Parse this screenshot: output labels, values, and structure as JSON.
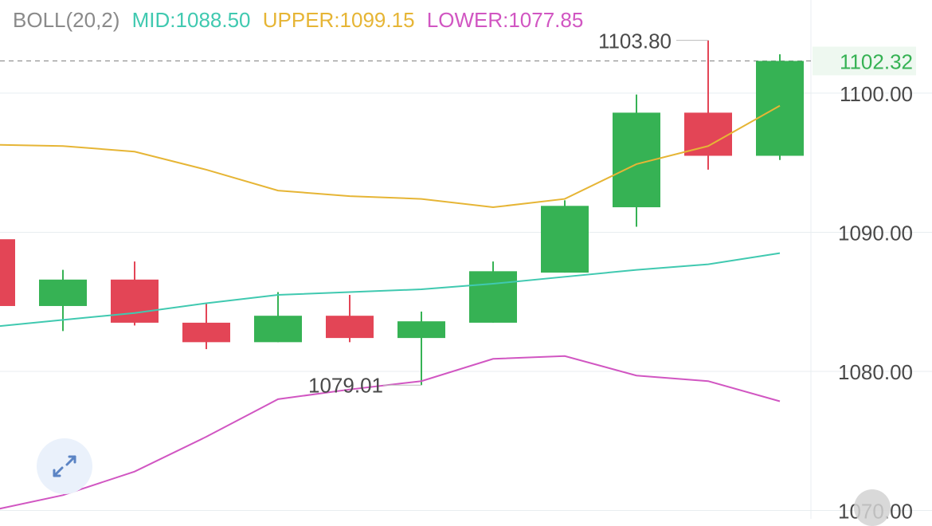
{
  "legend": {
    "name": "BOLL(20,2)",
    "mid": "MID:1088.50",
    "upper": "UPPER:1099.15",
    "lower": "LOWER:1077.85"
  },
  "colors": {
    "up": "#36b254",
    "down": "#e34556",
    "mid": "#40c9b0",
    "upper": "#e6b535",
    "lower": "#d156c2",
    "grid": "#e8eef0",
    "axis_text": "#4a4a4a",
    "legend_name": "#8a8a8a",
    "price_line": "#8a8a8a"
  },
  "chart_data": {
    "type": "candlestick",
    "title": "",
    "ylim": [
      1069.4,
      1106.7
    ],
    "y_ticks": [
      "1100.00",
      "1090.00",
      "1080.00",
      "1070.00"
    ],
    "y_tick_values": [
      1100,
      1090,
      1080,
      1070
    ],
    "current_price": "1102.32",
    "current_price_value": 1102.32,
    "max_label": "1103.80",
    "min_label": "1079.01",
    "candles": [
      {
        "o": 1089.5,
        "c": 1084.7,
        "h": 1089.5,
        "l": 1084.7
      },
      {
        "o": 1084.7,
        "c": 1086.6,
        "h": 1087.3,
        "l": 1082.9
      },
      {
        "o": 1086.6,
        "c": 1083.5,
        "h": 1087.9,
        "l": 1083.3
      },
      {
        "o": 1083.5,
        "c": 1082.1,
        "h": 1084.9,
        "l": 1081.6
      },
      {
        "o": 1082.1,
        "c": 1084.0,
        "h": 1085.7,
        "l": 1082.1
      },
      {
        "o": 1084.0,
        "c": 1082.4,
        "h": 1085.5,
        "l": 1082.1
      },
      {
        "o": 1082.4,
        "c": 1083.6,
        "h": 1084.3,
        "l": 1079.01
      },
      {
        "o": 1083.5,
        "c": 1087.2,
        "h": 1087.9,
        "l": 1083.5
      },
      {
        "o": 1087.1,
        "c": 1091.9,
        "h": 1092.3,
        "l": 1087.1
      },
      {
        "o": 1091.8,
        "c": 1098.6,
        "h": 1099.9,
        "l": 1090.4
      },
      {
        "o": 1098.6,
        "c": 1095.5,
        "h": 1103.8,
        "l": 1094.5
      },
      {
        "o": 1095.5,
        "c": 1102.32,
        "h": 1102.8,
        "l": 1095.2
      }
    ],
    "series": [
      {
        "name": "UPPER",
        "values": [
          1096.3,
          1096.2,
          1095.8,
          1094.5,
          1093.0,
          1092.6,
          1092.4,
          1091.8,
          1092.4,
          1094.9,
          1096.2,
          1099.1
        ]
      },
      {
        "name": "MID",
        "values": [
          1083.2,
          1083.7,
          1084.2,
          1084.9,
          1085.5,
          1085.7,
          1085.9,
          1086.3,
          1086.8,
          1087.3,
          1087.7,
          1088.5
        ]
      },
      {
        "name": "LOWER",
        "values": [
          1070.0,
          1071.1,
          1072.8,
          1075.3,
          1078.0,
          1078.7,
          1079.3,
          1080.9,
          1081.1,
          1079.7,
          1079.3,
          1077.85
        ]
      }
    ]
  }
}
